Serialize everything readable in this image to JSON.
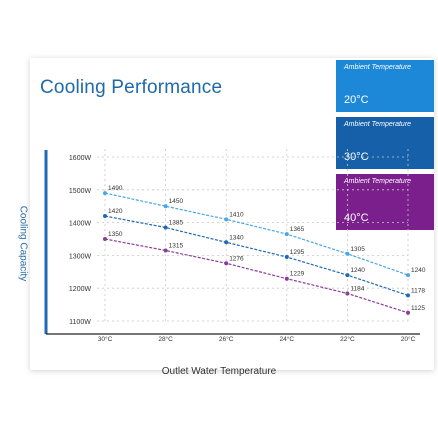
{
  "title": "Cooling Performance",
  "legend": [
    {
      "caption": "Ambient Temperature",
      "temp": "20°C",
      "color": "#1e88d8"
    },
    {
      "caption": "Ambient Temperature",
      "temp": "30°C",
      "color": "#1560a8"
    },
    {
      "caption": "Ambient Temperature",
      "temp": "40°C",
      "color": "#7a1f8c"
    }
  ],
  "chart_data": {
    "type": "line",
    "xlabel": "Outlet Water Temperature",
    "ylabel": "Cooling Capacity",
    "x": [
      "30°C",
      "28°C",
      "26°C",
      "24°C",
      "22°C",
      "20°C"
    ],
    "x_values": [
      30,
      28,
      26,
      24,
      22,
      20
    ],
    "y_ticks": [
      "1600W",
      "1500W",
      "1400W",
      "1300W",
      "1200W",
      "1100W"
    ],
    "ylim": [
      1100,
      1600
    ],
    "grid": true,
    "series": [
      {
        "name": "20°C",
        "color": "#49a7e3",
        "values": [
          1490,
          1450,
          1410,
          1365,
          1305,
          1240
        ]
      },
      {
        "name": "30°C",
        "color": "#1f69b5",
        "values": [
          1420,
          1385,
          1340,
          1295,
          1240,
          1178
        ]
      },
      {
        "name": "40°C",
        "color": "#8a3d9a",
        "values": [
          1350,
          1315,
          1276,
          1229,
          1184,
          1125
        ]
      }
    ],
    "point_labels": [
      [
        "1490",
        "1450",
        "1410",
        "1365",
        "1305",
        "1240"
      ],
      [
        "1420",
        "1385",
        "1340",
        "1295",
        "1240",
        "1178"
      ],
      [
        "1350",
        "1315",
        "1276",
        "1229",
        "1184",
        "1125"
      ]
    ]
  }
}
